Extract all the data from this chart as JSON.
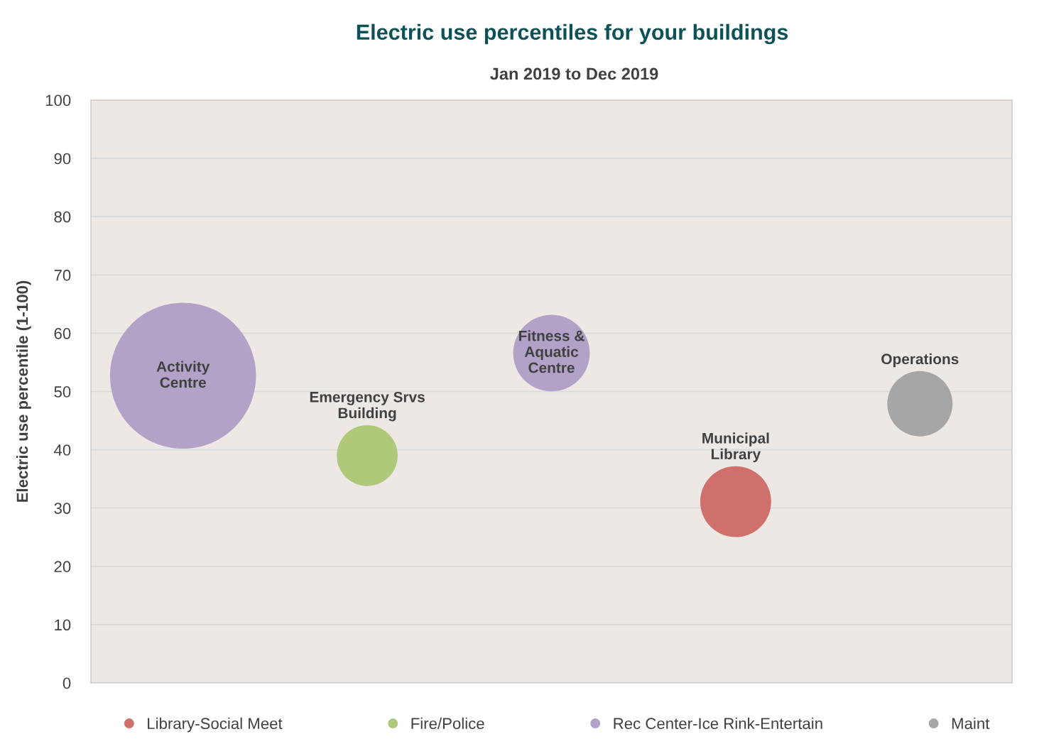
{
  "chart_data": {
    "type": "bubble",
    "title": "Electric use percentiles for your buildings",
    "subtitle": "Jan 2019 to Dec 2019",
    "ylabel": "Electric use percentile (1-100)",
    "categories": [
      null,
      null,
      null,
      null,
      null
    ],
    "series": [
      {
        "name": "Library-Social Meet",
        "color": "#d0706c",
        "values": [
          null,
          null,
          null,
          31.1,
          null
        ],
        "sizes": [
          null,
          null,
          null,
          0.236,
          null
        ],
        "value_labels": [
          null,
          null,
          null,
          "Municipal\nLibrary",
          null
        ]
      },
      {
        "name": "Fire/Police",
        "color": "#b0c87a",
        "values": [
          null,
          39.0,
          null,
          null,
          null
        ],
        "sizes": [
          null,
          0.174,
          null,
          null,
          null
        ],
        "value_labels": [
          null,
          "Emergency Srvs\nBuilding",
          null,
          null,
          null
        ]
      },
      {
        "name": "Rec Center-Ice Rink-Entertain",
        "color": "#b2a2c8",
        "values": [
          52.7,
          null,
          56.6,
          null,
          null
        ],
        "sizes": [
          1,
          null,
          0.275,
          null,
          null
        ],
        "value_labels": [
          "Activity\nCentre",
          null,
          "Fitness &\nAquatic\nCentre",
          null,
          null
        ]
      },
      {
        "name": "Maint",
        "color": "#a6a6a6",
        "values": [
          null,
          null,
          null,
          null,
          47.9
        ],
        "sizes": [
          null,
          null,
          null,
          null,
          0.2
        ],
        "value_labels": [
          null,
          null,
          null,
          null,
          "Operations"
        ]
      }
    ],
    "ylim": [
      0,
      100
    ],
    "yticks": [
      0,
      10,
      20,
      30,
      40,
      50,
      60,
      70,
      80,
      90,
      100
    ],
    "grid": "y",
    "legend": "bottom",
    "tick_labels": "y"
  }
}
